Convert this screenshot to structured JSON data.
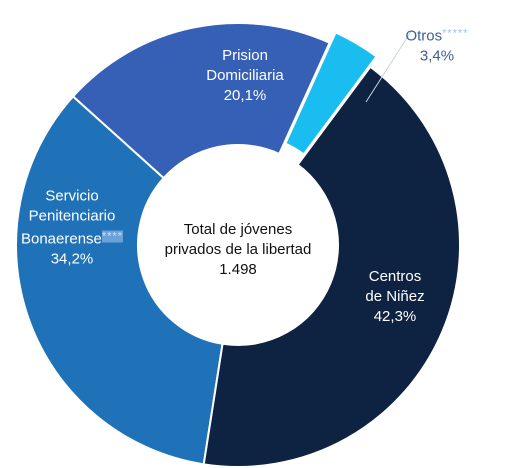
{
  "chart_data": {
    "type": "donut",
    "categories": [
      "Centros de Niñez",
      "Servicio Penitenciario Bonaerense",
      "Prision Domiciliaria",
      "Otros"
    ],
    "category_marks": [
      null,
      "****",
      null,
      "*****"
    ],
    "values": [
      42.3,
      34.2,
      20.1,
      3.4
    ],
    "value_labels": [
      "42,3%",
      "34,2%",
      "20,1%",
      "3,4%"
    ],
    "colors": [
      "#0e2241",
      "#1f72b8",
      "#3560b6",
      "#19bdf0"
    ],
    "exploded": [
      false,
      false,
      false,
      true
    ],
    "center_text": "Total de jóvenes privados de la libertad",
    "total": {
      "value": 1498,
      "label": "1.498"
    }
  }
}
